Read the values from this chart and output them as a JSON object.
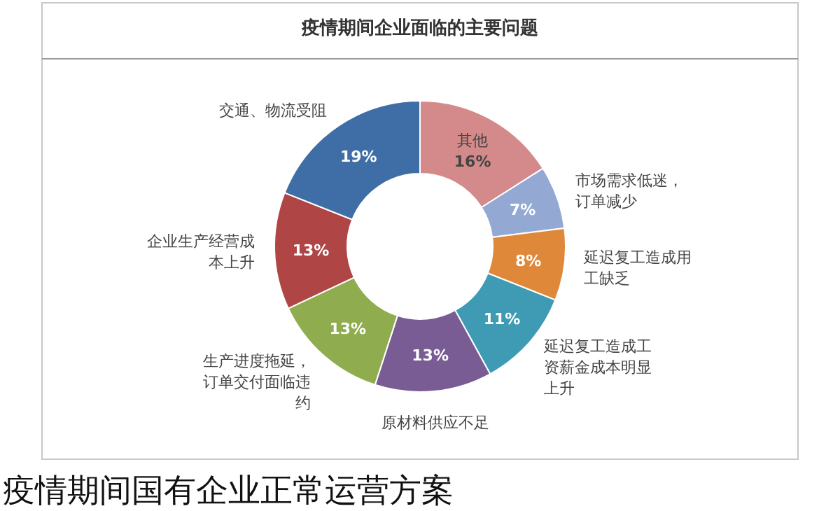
{
  "chart_data": {
    "type": "donut",
    "title": "疫情期间企业面临的主要问题",
    "categories": [
      "其他",
      "市场需求低迷，订单减少",
      "延迟复工造成用工缺乏",
      "延迟复工造成工资薪金成本明显上升",
      "原材料供应不足",
      "生产进度拖延，订单交付面临违约",
      "企业生产经营成本上升",
      "交通、物流受阻"
    ],
    "values": [
      16,
      7,
      8,
      11,
      13,
      13,
      13,
      19
    ],
    "value_labels": [
      "16%",
      "7%",
      "8%",
      "11%",
      "13%",
      "13%",
      "13%",
      "19%"
    ],
    "colors": [
      "#d48a8a",
      "#93a9d4",
      "#e0883a",
      "#3f9bb4",
      "#7a5c94",
      "#8fad4e",
      "#b04546",
      "#3f6ea6"
    ],
    "annotations": [
      "疫情期间国有企业正常运营方案"
    ]
  }
}
